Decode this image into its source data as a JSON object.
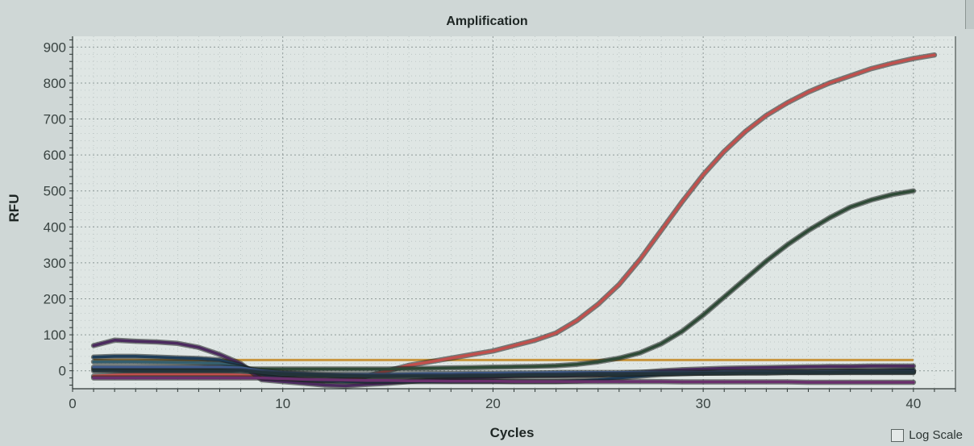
{
  "chart_data": {
    "type": "line",
    "title": "Amplification",
    "xlabel": "Cycles",
    "ylabel": "RFU",
    "xlim": [
      0,
      42
    ],
    "ylim": [
      -50,
      930
    ],
    "xticks": [
      0,
      10,
      20,
      30,
      40
    ],
    "yticks": [
      0,
      100,
      200,
      300,
      400,
      500,
      600,
      700,
      800,
      900
    ],
    "grid": true,
    "threshold": {
      "value": 30,
      "color": "#c8963e"
    },
    "series": [
      {
        "color": "#c0504d",
        "x": [
          1,
          2,
          3,
          4,
          5,
          6,
          7,
          8,
          9,
          10,
          11,
          12,
          13,
          14,
          15,
          16,
          17,
          18,
          19,
          20,
          21,
          22,
          23,
          24,
          25,
          26,
          27,
          28,
          29,
          30,
          31,
          32,
          33,
          34,
          35,
          36,
          37,
          38,
          39,
          40,
          41
        ],
        "y": [
          -15,
          -12,
          -10,
          -10,
          -10,
          -10,
          -10,
          -12,
          -15,
          -20,
          -25,
          -28,
          -25,
          -15,
          0,
          15,
          25,
          35,
          45,
          55,
          70,
          85,
          105,
          140,
          185,
          240,
          310,
          390,
          470,
          545,
          610,
          665,
          710,
          745,
          775,
          800,
          820,
          840,
          855,
          868,
          878
        ]
      },
      {
        "color": "#2e4a36",
        "x": [
          1,
          2,
          3,
          4,
          5,
          6,
          7,
          8,
          9,
          10,
          11,
          12,
          13,
          14,
          15,
          16,
          17,
          18,
          19,
          20,
          21,
          22,
          23,
          24,
          25,
          26,
          27,
          28,
          29,
          30,
          31,
          32,
          33,
          34,
          35,
          36,
          37,
          38,
          39,
          40
        ],
        "y": [
          5,
          5,
          5,
          5,
          5,
          5,
          5,
          5,
          5,
          5,
          5,
          5,
          5,
          5,
          5,
          6,
          7,
          8,
          9,
          10,
          11,
          12,
          14,
          18,
          25,
          35,
          50,
          75,
          110,
          155,
          205,
          255,
          305,
          350,
          390,
          425,
          455,
          475,
          490,
          500
        ]
      },
      {
        "color": "#4b2a5e",
        "x": [
          1,
          2,
          3,
          4,
          5,
          6,
          7,
          8,
          9,
          10,
          11,
          12,
          13,
          14,
          15,
          16,
          17,
          18,
          19,
          20,
          21,
          22,
          23,
          24,
          25,
          26,
          27,
          28,
          29,
          30,
          31,
          32,
          33,
          34,
          35,
          36,
          37,
          38,
          39,
          40
        ],
        "y": [
          70,
          85,
          82,
          80,
          76,
          65,
          45,
          20,
          -25,
          -30,
          -35,
          -40,
          -42,
          -38,
          -35,
          -30,
          -25,
          -22,
          -20,
          -18,
          -16,
          -15,
          -15,
          -14,
          -12,
          -8,
          -5,
          0,
          3,
          5,
          7,
          8,
          9,
          10,
          11,
          12,
          12,
          13,
          13,
          13
        ]
      },
      {
        "color": "#1e3d58",
        "x": [
          1,
          2,
          3,
          4,
          5,
          6,
          7,
          8,
          9,
          10,
          11,
          12,
          13,
          14,
          15,
          16,
          17,
          18,
          19,
          20,
          21,
          22,
          23,
          24,
          25,
          26,
          27,
          28,
          29,
          30,
          31,
          32,
          33,
          34,
          35,
          36,
          37,
          38,
          39,
          40
        ],
        "y": [
          38,
          40,
          40,
          38,
          36,
          34,
          30,
          15,
          -10,
          -20,
          -25,
          -28,
          -30,
          -30,
          -30,
          -30,
          -30,
          -30,
          -30,
          -30,
          -30,
          -30,
          -30,
          -28,
          -25,
          -20,
          -15,
          -10,
          -8,
          -6,
          -5,
          -4,
          -3,
          -2,
          -2,
          -1,
          0,
          0,
          1,
          2
        ]
      },
      {
        "color": "#355f6e",
        "x": [
          1,
          2,
          3,
          4,
          5,
          6,
          7,
          8,
          9,
          10,
          11,
          12,
          13,
          14,
          15,
          16,
          17,
          18,
          19,
          20,
          21,
          22,
          23,
          24,
          25,
          26,
          27,
          28,
          29,
          30,
          31,
          32,
          33,
          34,
          35,
          36,
          37,
          38,
          39,
          40
        ],
        "y": [
          25,
          25,
          25,
          24,
          23,
          22,
          20,
          10,
          -5,
          -10,
          -12,
          -14,
          -15,
          -15,
          -15,
          -15,
          -15,
          -14,
          -14,
          -13,
          -12,
          -12,
          -11,
          -10,
          -10,
          -9,
          -8,
          -8,
          -7,
          -7,
          -6,
          -6,
          -6,
          -5,
          -5,
          -5,
          -5,
          -5,
          -5,
          -5
        ]
      },
      {
        "color": "#3f5a8a",
        "x": [
          1,
          2,
          3,
          4,
          5,
          6,
          7,
          8,
          9,
          10,
          11,
          12,
          13,
          14,
          15,
          16,
          17,
          18,
          19,
          20,
          21,
          22,
          23,
          24,
          25,
          26,
          27,
          28,
          29,
          30,
          31,
          32,
          33,
          34,
          35,
          36,
          37,
          38,
          39,
          40
        ],
        "y": [
          10,
          10,
          10,
          10,
          10,
          10,
          10,
          8,
          0,
          -5,
          -8,
          -10,
          -10,
          -10,
          -10,
          -9,
          -8,
          -8,
          -7,
          -7,
          -6,
          -6,
          -5,
          -5,
          -5,
          -5,
          -4,
          -4,
          -4,
          -4,
          -3,
          -3,
          -3,
          -3,
          -3,
          -2,
          -2,
          -2,
          -2,
          -2
        ]
      },
      {
        "color": "#6a2f6c",
        "x": [
          1,
          2,
          3,
          4,
          5,
          6,
          7,
          8,
          9,
          10,
          11,
          12,
          13,
          14,
          15,
          16,
          17,
          18,
          19,
          20,
          21,
          22,
          23,
          24,
          25,
          26,
          27,
          28,
          29,
          30,
          31,
          32,
          33,
          34,
          35,
          36,
          37,
          38,
          39,
          40
        ],
        "y": [
          -20,
          -20,
          -20,
          -20,
          -20,
          -20,
          -20,
          -20,
          -20,
          -22,
          -24,
          -25,
          -26,
          -27,
          -27,
          -28,
          -28,
          -29,
          -29,
          -29,
          -30,
          -30,
          -30,
          -30,
          -30,
          -30,
          -30,
          -30,
          -31,
          -31,
          -31,
          -31,
          -31,
          -31,
          -32,
          -32,
          -32,
          -32,
          -32,
          -32
        ]
      },
      {
        "color": "#22333a",
        "x": [
          1,
          2,
          3,
          4,
          5,
          6,
          7,
          8,
          9,
          10,
          11,
          12,
          13,
          14,
          15,
          16,
          17,
          18,
          19,
          20,
          21,
          22,
          23,
          24,
          25,
          26,
          27,
          28,
          29,
          30,
          31,
          32,
          33,
          34,
          35,
          36,
          37,
          38,
          39,
          40
        ],
        "y": [
          0,
          0,
          0,
          0,
          0,
          0,
          0,
          0,
          -5,
          -8,
          -10,
          -12,
          -14,
          -15,
          -15,
          -15,
          -15,
          -15,
          -14,
          -14,
          -13,
          -12,
          -12,
          -11,
          -10,
          -10,
          -9,
          -8,
          -8,
          -7,
          -7,
          -6,
          -6,
          -5,
          -5,
          -5,
          -4,
          -4,
          -4,
          -4
        ]
      }
    ]
  },
  "controls": {
    "log_scale_label": "Log Scale"
  }
}
